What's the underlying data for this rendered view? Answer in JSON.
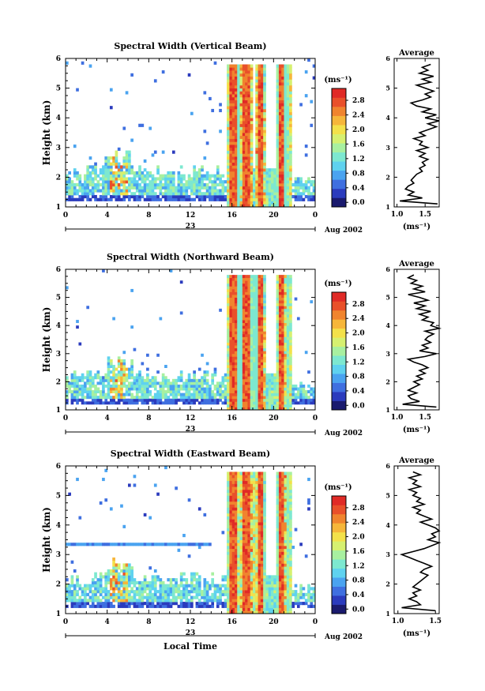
{
  "figure": {
    "date_label": "Aug 2002",
    "day_label": "23",
    "xlabel_bottom": "Local Time",
    "colorbar_unit": "(ms⁻¹)",
    "colorbar_ticks": [
      "0.0",
      "0.4",
      "0.8",
      "1.2",
      "1.6",
      "2.0",
      "2.4",
      "2.8"
    ],
    "colormap": [
      "#1a1a6e",
      "#2b3bbd",
      "#3f6fe0",
      "#4aa3f0",
      "#5fd2ef",
      "#7de8d0",
      "#a8f0a0",
      "#d6f070",
      "#f3e14a",
      "#f6b63a",
      "#f0842e",
      "#e9502a",
      "#e02a26"
    ]
  },
  "chart_data": [
    {
      "type": "heatmap",
      "title": "Spectral Width (Vertical Beam)",
      "xlabel": "",
      "ylabel": "Height (km)",
      "x_ticks": [
        "0",
        "4",
        "8",
        "12",
        "16",
        "20",
        "0"
      ],
      "xlim": [
        0,
        24
      ],
      "y_ticks": [
        "1",
        "2",
        "3",
        "4",
        "5",
        "6"
      ],
      "ylim": [
        1,
        6
      ],
      "colorbar_range": [
        0.0,
        3.0
      ],
      "profile": {
        "title": "Average",
        "xlabel": "(ms⁻¹)",
        "x_ticks": [
          "1.0",
          "1.5"
        ],
        "xlim": [
          0.95,
          1.75
        ],
        "heights": [
          1.1,
          1.2,
          1.3,
          1.4,
          1.5,
          1.6,
          1.7,
          1.8,
          1.9,
          2.0,
          2.1,
          2.2,
          2.3,
          2.4,
          2.5,
          2.6,
          2.7,
          2.8,
          2.9,
          3.0,
          3.1,
          3.2,
          3.3,
          3.4,
          3.5,
          3.6,
          3.7,
          3.8,
          3.9,
          4.0,
          4.1,
          4.2,
          4.3,
          4.4,
          4.5,
          4.6,
          4.7,
          4.8,
          4.9,
          5.0,
          5.1,
          5.2,
          5.3,
          5.4,
          5.5,
          5.6,
          5.7,
          5.8
        ],
        "values": [
          1.72,
          1.05,
          1.45,
          1.2,
          1.3,
          1.15,
          1.2,
          1.3,
          1.25,
          1.3,
          1.35,
          1.45,
          1.4,
          1.5,
          1.45,
          1.55,
          1.4,
          1.5,
          1.35,
          1.55,
          1.4,
          1.45,
          1.3,
          1.5,
          1.4,
          1.55,
          1.7,
          1.55,
          1.75,
          1.5,
          1.7,
          1.45,
          1.6,
          1.35,
          1.25,
          1.45,
          1.6,
          1.5,
          1.65,
          1.5,
          1.35,
          1.6,
          1.45,
          1.65,
          1.4,
          1.55,
          1.45,
          1.6
        ]
      }
    },
    {
      "type": "heatmap",
      "title": "Spectral Width (Northward Beam)",
      "xlabel": "",
      "ylabel": "Height (km)",
      "x_ticks": [
        "0",
        "4",
        "8",
        "12",
        "16",
        "20",
        "0"
      ],
      "xlim": [
        0,
        24
      ],
      "y_ticks": [
        "1",
        "2",
        "3",
        "4",
        "5",
        "6"
      ],
      "ylim": [
        1,
        6
      ],
      "colorbar_range": [
        0.0,
        3.0
      ],
      "profile": {
        "title": "Average",
        "xlabel": "(ms⁻¹)",
        "x_ticks": [
          "1.0",
          "1.5"
        ],
        "xlim": [
          0.95,
          1.75
        ],
        "heights": [
          1.1,
          1.2,
          1.3,
          1.4,
          1.5,
          1.6,
          1.7,
          1.8,
          1.9,
          2.0,
          2.1,
          2.2,
          2.3,
          2.4,
          2.5,
          2.6,
          2.7,
          2.8,
          2.9,
          3.0,
          3.1,
          3.2,
          3.3,
          3.4,
          3.5,
          3.6,
          3.7,
          3.8,
          3.9,
          4.0,
          4.1,
          4.2,
          4.3,
          4.4,
          4.5,
          4.6,
          4.7,
          4.8,
          4.9,
          5.0,
          5.1,
          5.2,
          5.3,
          5.4,
          5.5,
          5.6,
          5.7,
          5.8
        ],
        "values": [
          1.7,
          1.1,
          1.4,
          1.25,
          1.2,
          1.35,
          1.2,
          1.3,
          1.4,
          1.3,
          1.45,
          1.35,
          1.5,
          1.4,
          1.55,
          1.45,
          1.3,
          1.2,
          1.5,
          1.7,
          1.4,
          1.55,
          1.45,
          1.6,
          1.5,
          1.55,
          1.65,
          1.5,
          1.75,
          1.6,
          1.65,
          1.45,
          1.55,
          1.4,
          1.6,
          1.35,
          1.5,
          1.3,
          1.55,
          1.4,
          1.2,
          1.5,
          1.3,
          1.45,
          1.25,
          1.35,
          1.2,
          1.3
        ]
      }
    },
    {
      "type": "heatmap",
      "title": "Spectral Width (Eastward Beam)",
      "xlabel": "Local Time",
      "ylabel": "Height (km)",
      "x_ticks": [
        "0",
        "4",
        "8",
        "12",
        "16",
        "20",
        "0"
      ],
      "xlim": [
        0,
        24
      ],
      "y_ticks": [
        "1",
        "2",
        "3",
        "4",
        "5",
        "6"
      ],
      "ylim": [
        1,
        6
      ],
      "colorbar_range": [
        0.0,
        3.0
      ],
      "profile": {
        "title": "Average",
        "xlabel": "(ms⁻¹)",
        "x_ticks": [
          "1.0",
          "1.5"
        ],
        "xlim": [
          0.95,
          1.55
        ],
        "heights": [
          1.1,
          1.2,
          1.3,
          1.4,
          1.5,
          1.6,
          1.7,
          1.8,
          1.9,
          2.0,
          2.1,
          2.2,
          2.3,
          2.4,
          2.5,
          2.6,
          2.7,
          2.8,
          2.9,
          3.0,
          3.1,
          3.2,
          3.3,
          3.4,
          3.5,
          3.6,
          3.7,
          3.8,
          3.9,
          4.0,
          4.1,
          4.2,
          4.3,
          4.4,
          4.5,
          4.6,
          4.7,
          4.8,
          4.9,
          5.0,
          5.1,
          5.2,
          5.3,
          5.4,
          5.5,
          5.6,
          5.7,
          5.8
        ],
        "values": [
          1.5,
          1.05,
          1.3,
          1.25,
          1.15,
          1.25,
          1.2,
          1.3,
          1.2,
          1.25,
          1.3,
          1.35,
          1.4,
          1.3,
          1.35,
          1.45,
          1.35,
          1.25,
          1.15,
          1.05,
          1.2,
          1.35,
          1.45,
          1.55,
          1.4,
          1.5,
          1.45,
          1.55,
          1.5,
          1.4,
          1.3,
          1.45,
          1.35,
          1.25,
          1.3,
          1.2,
          1.35,
          1.25,
          1.3,
          1.2,
          1.25,
          1.15,
          1.3,
          1.2,
          1.25,
          1.15,
          1.3,
          1.2
        ]
      }
    }
  ]
}
